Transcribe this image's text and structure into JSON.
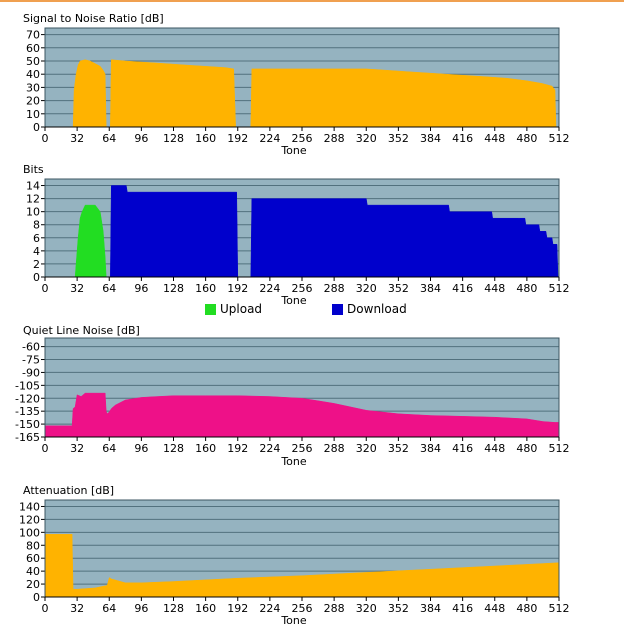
{
  "chart_data": [
    {
      "type": "area",
      "title": "Signal to Noise Ratio [dB]",
      "xlabel": "Tone",
      "xlim": [
        0,
        512
      ],
      "ylim": [
        0,
        75
      ],
      "x_ticks": [
        0,
        32,
        64,
        96,
        128,
        160,
        192,
        224,
        256,
        288,
        320,
        352,
        384,
        416,
        448,
        480,
        512
      ],
      "y_ticks": [
        0,
        10,
        20,
        30,
        40,
        50,
        60,
        70
      ],
      "grid": "horizontal",
      "colors": {
        "plot_bg": "#95b3c0",
        "fill": "#ffb300"
      },
      "series": [
        {
          "x": [
            28,
            29,
            31,
            33,
            35,
            40,
            45,
            50,
            55,
            58,
            60,
            61,
            65,
            66,
            80,
            100,
            120,
            140,
            160,
            180,
            188,
            190,
            195,
            205,
            206,
            220,
            240,
            260,
            280,
            300,
            320,
            340,
            360,
            380,
            400,
            420,
            440,
            460,
            480,
            495,
            505,
            508,
            509
          ],
          "y": [
            0,
            28,
            40,
            47,
            50,
            51,
            50,
            48,
            46,
            43,
            40,
            0,
            0,
            51,
            50,
            49,
            48,
            47,
            46,
            45,
            44,
            0,
            0,
            0,
            44,
            44,
            44,
            44,
            44,
            44,
            44,
            43,
            42,
            41,
            40,
            39,
            38,
            37,
            35,
            33,
            31,
            28,
            0
          ]
        }
      ]
    },
    {
      "type": "area",
      "title": "Bits",
      "xlabel": "Tone",
      "xlim": [
        0,
        512
      ],
      "ylim": [
        0,
        15
      ],
      "x_ticks": [
        0,
        32,
        64,
        96,
        128,
        160,
        192,
        224,
        256,
        288,
        320,
        352,
        384,
        416,
        448,
        480,
        512
      ],
      "y_ticks": [
        0,
        2,
        4,
        6,
        8,
        10,
        12,
        14
      ],
      "grid": "horizontal",
      "colors": {
        "plot_bg": "#95b3c0"
      },
      "legend": {
        "position": "bottom",
        "items": [
          "Upload",
          "Download"
        ]
      },
      "series": [
        {
          "name": "Upload",
          "color": "#22dd22",
          "x": [
            30,
            31,
            33,
            35,
            37,
            40,
            50,
            55,
            58,
            60,
            61
          ],
          "y": [
            0,
            2,
            6,
            9,
            10,
            11,
            11,
            10,
            7,
            3,
            0
          ]
        },
        {
          "name": "Download",
          "color": "#0000cc",
          "x": [
            65,
            66,
            81,
            82,
            127,
            128,
            172,
            173,
            186,
            187,
            191,
            192,
            200,
            205,
            206,
            244,
            245,
            265,
            266,
            295,
            296,
            320,
            321,
            345,
            346,
            360,
            361,
            402,
            403,
            445,
            446,
            472,
            473,
            478,
            479,
            492,
            493,
            499,
            500,
            505,
            506,
            510,
            511
          ],
          "y": [
            0,
            14,
            14,
            13,
            13,
            13,
            13,
            13,
            13,
            13,
            13,
            0,
            0,
            0,
            12,
            12,
            12,
            12,
            12,
            12,
            12,
            12,
            11,
            11,
            11,
            11,
            11,
            11,
            10,
            10,
            9,
            9,
            9,
            9,
            8,
            8,
            7,
            7,
            6,
            6,
            5,
            5,
            0
          ]
        }
      ]
    },
    {
      "type": "area",
      "title": "Quiet Line Noise [dB]",
      "xlabel": "Tone",
      "xlim": [
        0,
        512
      ],
      "ylim": [
        -165,
        -50
      ],
      "x_ticks": [
        0,
        32,
        64,
        96,
        128,
        160,
        192,
        224,
        256,
        288,
        320,
        352,
        384,
        416,
        448,
        480,
        512
      ],
      "y_ticks": [
        -60,
        -75,
        -90,
        -105,
        -120,
        -135,
        -150,
        -165
      ],
      "grid": "horizontal",
      "colors": {
        "plot_bg": "#95b3c0",
        "fill": "#ee1188"
      },
      "series": [
        {
          "x": [
            0,
            27,
            28,
            30,
            32,
            36,
            40,
            60,
            61,
            62,
            64,
            66,
            70,
            80,
            96,
            112,
            128,
            160,
            192,
            224,
            256,
            272,
            288,
            320,
            352,
            384,
            416,
            448,
            480,
            496,
            508,
            512
          ],
          "y": [
            -152,
            -152,
            -132,
            -130,
            -116,
            -118,
            -114,
            -114,
            -135,
            -138,
            -136,
            -132,
            -128,
            -122,
            -119,
            -118,
            -117,
            -117,
            -117,
            -118,
            -120,
            -123,
            -126,
            -134,
            -138,
            -140,
            -141,
            -142,
            -144,
            -147,
            -148,
            -148
          ]
        }
      ]
    },
    {
      "type": "area",
      "title": "Attenuation [dB]",
      "xlabel": "Tone",
      "xlim": [
        0,
        512
      ],
      "ylim": [
        0,
        150
      ],
      "x_ticks": [
        0,
        32,
        64,
        96,
        128,
        160,
        192,
        224,
        256,
        288,
        320,
        352,
        384,
        416,
        448,
        480,
        512
      ],
      "y_ticks": [
        0,
        20,
        40,
        60,
        80,
        100,
        120,
        140
      ],
      "grid": "horizontal",
      "colors": {
        "plot_bg": "#95b3c0",
        "fill": "#ffb300"
      },
      "series": [
        {
          "x": [
            0,
            27,
            28,
            32,
            50,
            62,
            64,
            66,
            80,
            96,
            128,
            192,
            256,
            320,
            384,
            448,
            512
          ],
          "y": [
            97,
            97,
            12,
            12,
            14,
            18,
            30,
            28,
            22,
            22,
            24,
            29,
            33,
            38,
            43,
            48,
            53
          ]
        }
      ]
    }
  ]
}
